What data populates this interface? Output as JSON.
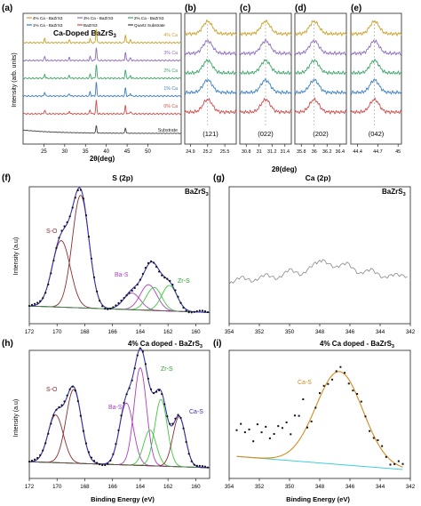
{
  "figure": {
    "panels": {
      "a": "(a)",
      "b": "(b)",
      "c": "(c)",
      "d": "(d)",
      "e": "(e)",
      "f": "(f)",
      "g": "(g)",
      "h": "(h)",
      "i": "(i)"
    },
    "top_title": "Ca-Doped BaZrS",
    "top_title_sub": "3",
    "xrd_ylabel": "Intensity (arb. units)",
    "xrd_xlabel": "2θ(deg)",
    "zoom_xlabel": "2θ(deg)",
    "xps_ylabel": "Intensity (a.u)",
    "xps_xlabel": "Binding Energy (eV)",
    "f_title": "S (2p)",
    "g_title": "Ca (2p)",
    "f_corner": "BaZrS",
    "f_corner_sub": "3",
    "g_corner": "BaZrS",
    "g_corner_sub": "3",
    "h_title": "4% Ca doped - BaZrS",
    "h_title_sub": "3",
    "i_title": "4% Ca doped - BaZrS",
    "i_title_sub": "3",
    "legend_col1_row1": "4% Ca - BaZrS3",
    "legend_col2_row1": "3% Ca - BaZrS3",
    "legend_col3_row1": "2% Ca - BaZrS3",
    "legend_col1_row2": "1% Ca - BaZrS3",
    "legend_col2_row2": "BaZrS3",
    "legend_col3_row2": "Quartz Substrate",
    "colors": {
      "ca4": "#c9a227",
      "ca3": "#8e6bbf",
      "ca2": "#3aa566",
      "ca1": "#3a7ec4",
      "ca0": "#d24a48",
      "substrate": "#404040",
      "fit_brown": "#8b2e2e",
      "fit_magenta": "#b03cc3",
      "fit_green": "#3cc93c",
      "fit_blue": "#3232b4",
      "fit_orange": "#d68a1e",
      "fit_cyan": "#3fd0de"
    }
  },
  "chart_data": [
    {
      "panel": "a",
      "type": "line",
      "title": "Ca-Doped BaZrS3",
      "xlabel": "2θ(deg)",
      "ylabel": "Intensity (arb. units)",
      "xlim": [
        20,
        58
      ],
      "x_ticks": [
        25,
        30,
        35,
        40,
        45,
        50
      ],
      "y_ticks": [],
      "series": [
        {
          "name": "4% Ca",
          "color": "#c9a227",
          "peaks": [
            [
              25.2,
              3
            ],
            [
              31.1,
              2
            ],
            [
              36.1,
              3
            ],
            [
              37.6,
              10
            ],
            [
              44.6,
              6
            ],
            [
              45.8,
              2
            ]
          ]
        },
        {
          "name": "3% Ca",
          "color": "#8e6bbf",
          "peaks": [
            [
              25.2,
              3
            ],
            [
              31.1,
              2
            ],
            [
              36.1,
              3
            ],
            [
              37.6,
              10
            ],
            [
              44.6,
              6
            ],
            [
              45.8,
              2
            ]
          ]
        },
        {
          "name": "2% Ca",
          "color": "#3aa566",
          "peaks": [
            [
              25.2,
              3
            ],
            [
              31.1,
              2
            ],
            [
              36.1,
              3
            ],
            [
              37.6,
              10
            ],
            [
              44.6,
              6
            ],
            [
              45.8,
              2
            ]
          ]
        },
        {
          "name": "1% Ca",
          "color": "#3a7ec4",
          "peaks": [
            [
              25.2,
              3
            ],
            [
              31.1,
              2
            ],
            [
              36.1,
              3
            ],
            [
              37.6,
              10
            ],
            [
              44.6,
              6
            ],
            [
              45.8,
              2
            ]
          ]
        },
        {
          "name": "0% Ca",
          "color": "#d24a48",
          "peaks": [
            [
              25.2,
              3
            ],
            [
              31.1,
              2
            ],
            [
              36.1,
              3
            ],
            [
              37.6,
              10
            ],
            [
              44.6,
              6
            ],
            [
              45.8,
              2
            ]
          ]
        },
        {
          "name": "Substrate",
          "color": "#404040",
          "peaks": [
            [
              37.6,
              14
            ],
            [
              44.6,
              10
            ]
          ]
        }
      ]
    },
    {
      "panel": "b",
      "type": "line",
      "xlim": [
        24.8,
        25.7
      ],
      "x_ticks": [
        24.9,
        25.2,
        25.5
      ],
      "peak_center": 25.2,
      "hkl": "(121)",
      "series_colors": [
        "#c9a227",
        "#8e6bbf",
        "#3aa566",
        "#3a7ec4",
        "#d24a48"
      ]
    },
    {
      "panel": "c",
      "type": "line",
      "xlim": [
        30.7,
        31.5
      ],
      "x_ticks": [
        30.8,
        31.0,
        31.2,
        31.4
      ],
      "peak_center": 31.1,
      "hkl": "(022)",
      "series_colors": [
        "#c9a227",
        "#8e6bbf",
        "#3aa566",
        "#3a7ec4",
        "#d24a48"
      ]
    },
    {
      "panel": "d",
      "type": "line",
      "xlim": [
        35.7,
        36.5
      ],
      "x_ticks": [
        35.8,
        36.0,
        36.2,
        36.4
      ],
      "peak_center": 36.0,
      "hkl": "(202)",
      "series_colors": [
        "#c9a227",
        "#8e6bbf",
        "#3aa566",
        "#3a7ec4",
        "#d24a48"
      ]
    },
    {
      "panel": "e",
      "type": "line",
      "xlim": [
        44.3,
        45.05
      ],
      "x_ticks": [
        44.4,
        44.7,
        45.0
      ],
      "peak_center": 44.65,
      "hkl": "(042)",
      "series_colors": [
        "#c9a227",
        "#8e6bbf",
        "#3aa566",
        "#3a7ec4",
        "#d24a48"
      ]
    },
    {
      "panel": "f",
      "type": "line",
      "title": "S (2p)",
      "xlabel": "Binding Energy (eV)",
      "ylabel": "Intensity (a.u)",
      "xlim": [
        172,
        159
      ],
      "x_ticks": [
        172,
        170,
        168,
        166,
        164,
        162,
        160
      ],
      "components": [
        {
          "label": "S-O",
          "center": 169.7,
          "height": 0.52,
          "width": 0.65,
          "color": "#8b2e2e"
        },
        {
          "label": "S-O",
          "center": 168.3,
          "height": 0.88,
          "width": 0.6,
          "color": "#8b2e2e"
        },
        {
          "label": "Ba-S",
          "center": 164.6,
          "height": 0.13,
          "width": 0.6,
          "color": "#b03cc3"
        },
        {
          "label": "Ba-S",
          "center": 163.4,
          "height": 0.2,
          "width": 0.6,
          "color": "#b03cc3"
        },
        {
          "label": "Zr-S",
          "center": 163.0,
          "height": 0.18,
          "width": 0.55,
          "color": "#3cc93c"
        },
        {
          "label": "Zr-S",
          "center": 161.9,
          "height": 0.2,
          "width": 0.55,
          "color": "#3cc93c"
        }
      ],
      "envelope_color": "#3232b4",
      "labels": [
        "S-O",
        "Ba-S",
        "Zr-S"
      ]
    },
    {
      "panel": "g",
      "type": "line",
      "title": "Ca (2p)",
      "xlabel": "Binding Energy (eV)",
      "xlim": [
        354,
        342
      ],
      "x_ticks": [
        354,
        352,
        350,
        348,
        346,
        344,
        342
      ],
      "x": [
        354,
        353.2,
        352.4,
        351.6,
        350.8,
        350.0,
        349.2,
        348.4,
        347.8,
        347.0,
        346.2,
        345.4,
        344.6,
        343.8,
        343.0,
        342.2
      ],
      "y": [
        0.28,
        0.34,
        0.3,
        0.36,
        0.32,
        0.4,
        0.35,
        0.44,
        0.47,
        0.41,
        0.45,
        0.36,
        0.4,
        0.33,
        0.36,
        0.34
      ]
    },
    {
      "panel": "h",
      "type": "line",
      "title": "4% Ca doped - BaZrS3",
      "xlabel": "Binding Energy (eV)",
      "ylabel": "Intensity (a.u)",
      "xlim": [
        172,
        159
      ],
      "x_ticks": [
        172,
        170,
        168,
        166,
        164,
        162,
        160
      ],
      "components": [
        {
          "label": "S-O",
          "center": 170.1,
          "height": 0.4,
          "width": 0.55,
          "color": "#8b2e2e"
        },
        {
          "label": "S-O",
          "center": 168.8,
          "height": 0.62,
          "width": 0.55,
          "color": "#8b2e2e"
        },
        {
          "label": "Ba-S",
          "center": 165.0,
          "height": 0.52,
          "width": 0.5,
          "color": "#b03cc3"
        },
        {
          "label": "Ba-S",
          "center": 164.0,
          "height": 0.82,
          "width": 0.45,
          "color": "#b03cc3"
        },
        {
          "label": "Zr-S",
          "center": 163.3,
          "height": 0.3,
          "width": 0.45,
          "color": "#3cc93c"
        },
        {
          "label": "Zr-S",
          "center": 162.5,
          "height": 0.56,
          "width": 0.45,
          "color": "#3cc93c"
        },
        {
          "label": "Ca-S",
          "center": 161.2,
          "height": 0.42,
          "width": 0.45,
          "color": "#8b2e2e"
        }
      ],
      "envelope_color": "#3232b4",
      "labels": [
        "S-O",
        "Ba-S",
        "Zr-S",
        "Ca-S"
      ]
    },
    {
      "panel": "i",
      "type": "line",
      "title": "4% Ca doped - BaZrS3",
      "xlabel": "Binding Energy (eV)",
      "xlim": [
        354,
        342
      ],
      "x_ticks": [
        354,
        352,
        350,
        348,
        346,
        344,
        342
      ],
      "component": {
        "label": "Ca-S",
        "center": 346.7,
        "height": 0.78,
        "width": 1.55,
        "color": "#d68a1e"
      },
      "background": {
        "color": "#3fd0de",
        "start": 0.16,
        "end": 0.04
      }
    }
  ]
}
